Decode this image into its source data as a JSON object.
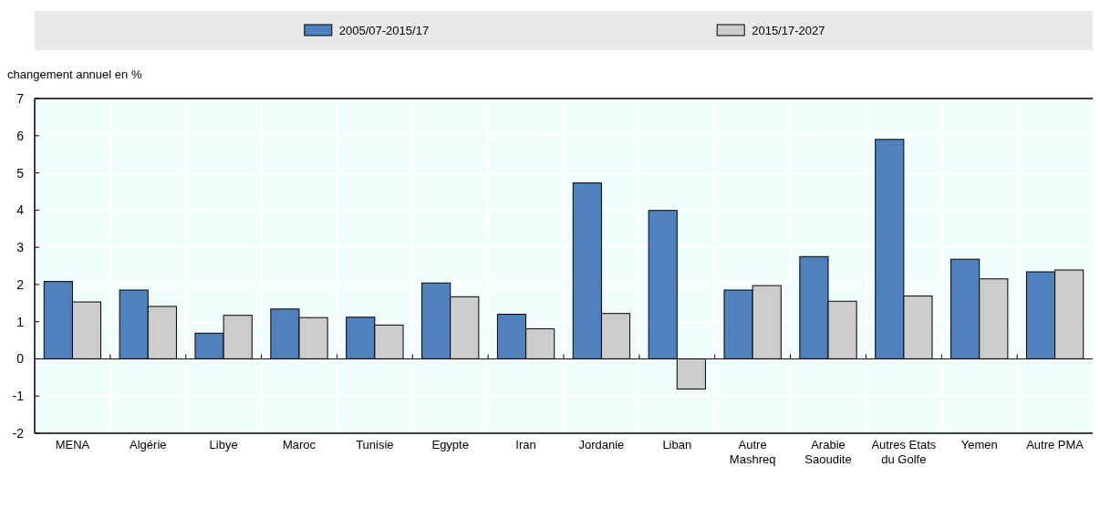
{
  "chart_data": {
    "type": "bar",
    "ylabel": "changement annuel en %",
    "categories": [
      "MENA",
      "Algérie",
      "Libye",
      "Maroc",
      "Tunisie",
      "Egypte",
      "Iran",
      "Jordanie",
      "Liban",
      "Autre Mashreq",
      "Arabie Saoudite",
      "Autres Etats du Golfe",
      "Yemen",
      "Autre PMA"
    ],
    "series": [
      {
        "name": "2005/07-2015/17",
        "color": "#4f81bd",
        "values": [
          2.08,
          1.85,
          0.69,
          1.34,
          1.12,
          2.04,
          1.2,
          4.73,
          3.99,
          1.85,
          2.75,
          5.9,
          2.68,
          2.34
        ]
      },
      {
        "name": "2015/17-2027",
        "color": "#cccccc",
        "values": [
          1.53,
          1.41,
          1.17,
          1.11,
          0.91,
          1.67,
          0.81,
          1.22,
          -0.81,
          1.97,
          1.55,
          1.69,
          2.15,
          2.39
        ]
      }
    ],
    "ylim": [
      -2,
      7
    ],
    "yticks": [
      -2,
      -1,
      0,
      1,
      2,
      3,
      4,
      5,
      6,
      7
    ],
    "grid": true,
    "legend": "top"
  }
}
